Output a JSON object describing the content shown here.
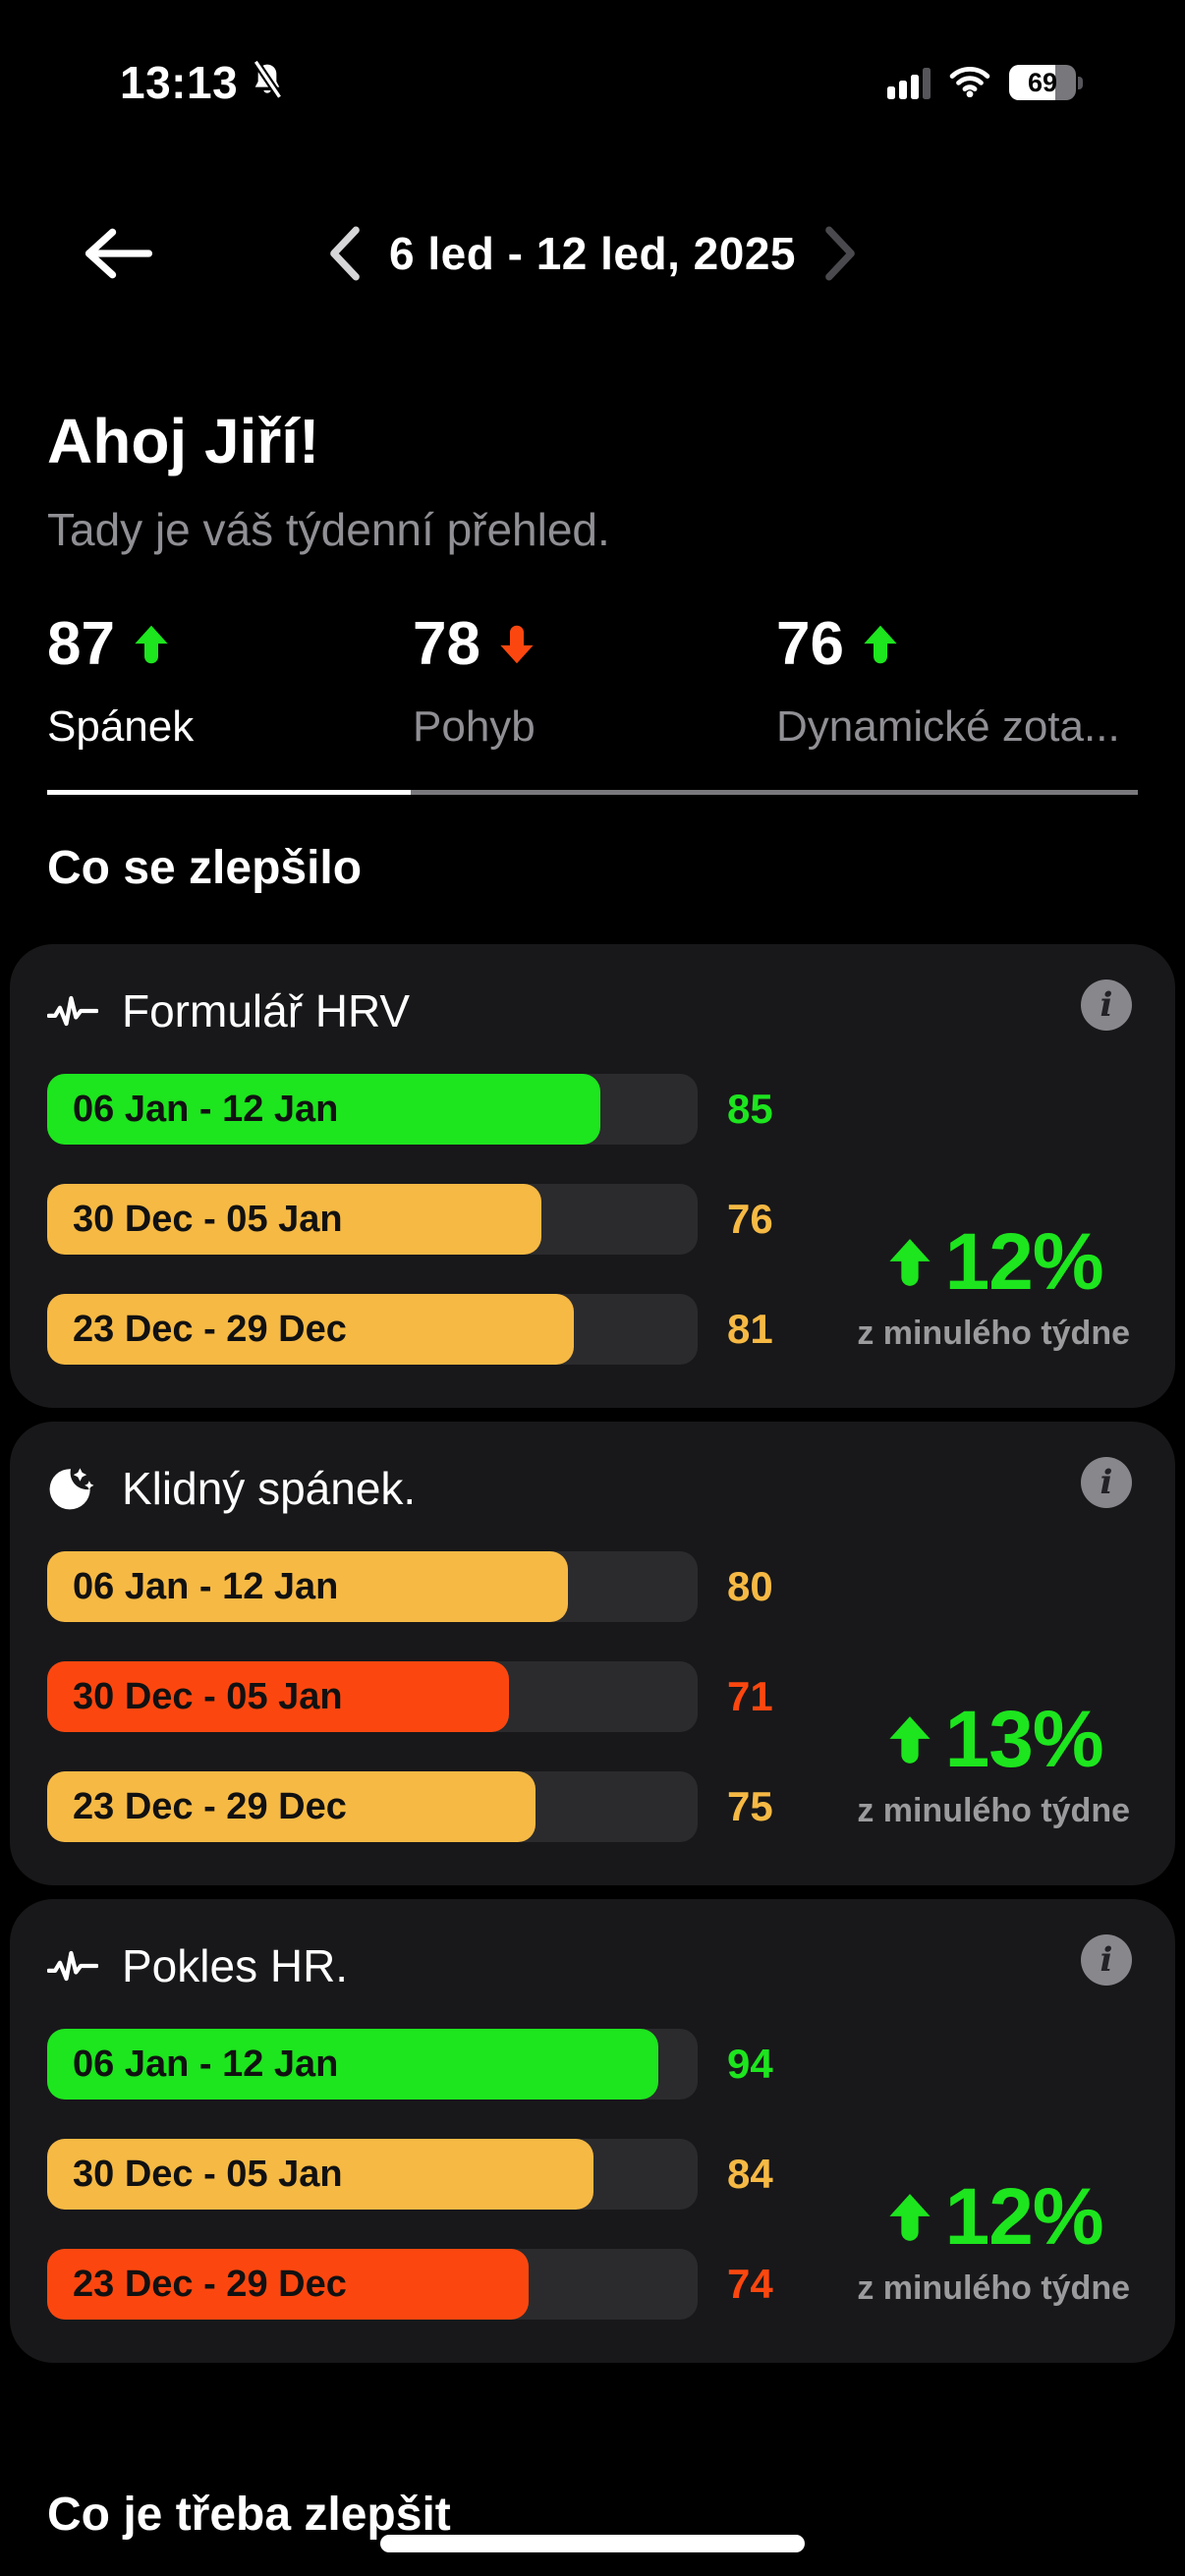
{
  "status_bar": {
    "time": "13:13",
    "battery_level": "69",
    "battery_fill_pct": 69
  },
  "nav": {
    "date_range": "6 led - 12 led, 2025"
  },
  "header": {
    "greeting": "Ahoj Jiří!",
    "subtitle": "Tady je váš týdenní přehled."
  },
  "stats": [
    {
      "value": "87",
      "trend": "up",
      "label": "Spánek",
      "active": true
    },
    {
      "value": "78",
      "trend": "down",
      "label": "Pohyb",
      "active": false
    },
    {
      "value": "76",
      "trend": "up",
      "label": "Dynamické zota...",
      "active": false
    }
  ],
  "sections": {
    "improved": "Co se zlepšilo",
    "needs_improvement": "Co je třeba zlepšit"
  },
  "cards": [
    {
      "icon": "pulse",
      "title": "Formulář HRV",
      "bars": [
        {
          "label": "06 Jan - 12 Jan",
          "value": 85,
          "color": "green"
        },
        {
          "label": "30 Dec - 05 Jan",
          "value": 76,
          "color": "amber"
        },
        {
          "label": "23 Dec - 29 Dec",
          "value": 81,
          "color": "amber"
        }
      ],
      "change_trend": "up",
      "change_pct": "12%",
      "change_caption": "z minulého týdne"
    },
    {
      "icon": "moon",
      "title": "Klidný spánek.",
      "bars": [
        {
          "label": "06 Jan - 12 Jan",
          "value": 80,
          "color": "amber"
        },
        {
          "label": "30 Dec - 05 Jan",
          "value": 71,
          "color": "red"
        },
        {
          "label": "23 Dec - 29 Dec",
          "value": 75,
          "color": "amber"
        }
      ],
      "change_trend": "up",
      "change_pct": "13%",
      "change_caption": "z minulého týdne"
    },
    {
      "icon": "pulse",
      "title": "Pokles HR.",
      "bars": [
        {
          "label": "06 Jan - 12 Jan",
          "value": 94,
          "color": "green"
        },
        {
          "label": "30 Dec - 05 Jan",
          "value": 84,
          "color": "amber"
        },
        {
          "label": "23 Dec - 29 Dec",
          "value": 74,
          "color": "red"
        }
      ],
      "change_trend": "up",
      "change_pct": "12%",
      "change_caption": "z minulého týdne"
    }
  ],
  "colors": {
    "green": "#1de51e",
    "amber": "#f6b944",
    "red": "#fb470f",
    "background": "#000000",
    "card_background": "#18181a"
  }
}
